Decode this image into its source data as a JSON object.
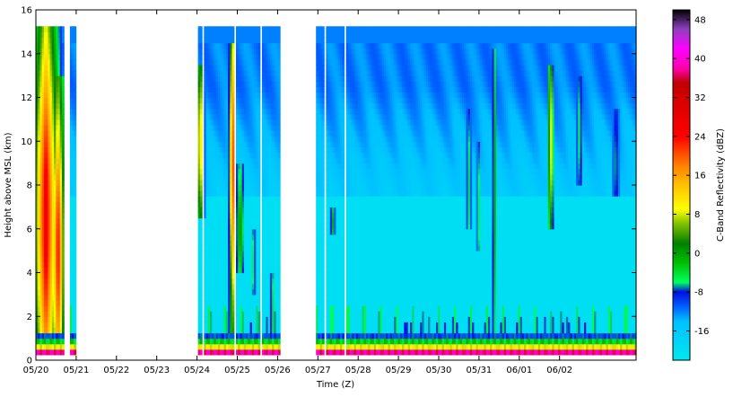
{
  "chart_data": {
    "type": "heatmap",
    "title": "",
    "xlabel": "Time (Z)",
    "ylabel": "Height above MSL (km)",
    "colorbar_label": "C-Band Reflectivity (dBZ)",
    "xlim": [
      0,
      14.9
    ],
    "ylim": [
      0,
      16
    ],
    "x_ticks": [
      {
        "pos": 0,
        "label": "05/20"
      },
      {
        "pos": 1,
        "label": "05/21"
      },
      {
        "pos": 2,
        "label": "05/22"
      },
      {
        "pos": 3,
        "label": "05/23"
      },
      {
        "pos": 4,
        "label": "05/24"
      },
      {
        "pos": 5,
        "label": "05/25"
      },
      {
        "pos": 6,
        "label": "05/26"
      },
      {
        "pos": 7,
        "label": "05/27"
      },
      {
        "pos": 8,
        "label": "05/28"
      },
      {
        "pos": 9,
        "label": "05/29"
      },
      {
        "pos": 10,
        "label": "05/30"
      },
      {
        "pos": 11,
        "label": "05/31"
      },
      {
        "pos": 12,
        "label": "06/01"
      },
      {
        "pos": 13,
        "label": "06/02"
      }
    ],
    "y_ticks": [
      0,
      2,
      4,
      6,
      8,
      10,
      12,
      14,
      16
    ],
    "colorbar": {
      "range": [
        -22,
        50
      ],
      "ticks": [
        -16,
        -8,
        0,
        8,
        16,
        24,
        32,
        40,
        48
      ],
      "stops": [
        {
          "v": -22,
          "color": "#00e8f0"
        },
        {
          "v": -14,
          "color": "#00c0ff"
        },
        {
          "v": -11,
          "color": "#0060ff"
        },
        {
          "v": -8,
          "color": "#0010e0"
        },
        {
          "v": -6,
          "color": "#00ff60"
        },
        {
          "v": -2,
          "color": "#00c000"
        },
        {
          "v": 2,
          "color": "#008000"
        },
        {
          "v": 6,
          "color": "#80c000"
        },
        {
          "v": 9,
          "color": "#ffff00"
        },
        {
          "v": 14,
          "color": "#ffc000"
        },
        {
          "v": 18,
          "color": "#ff8000"
        },
        {
          "v": 24,
          "color": "#ff0000"
        },
        {
          "v": 30,
          "color": "#e00000"
        },
        {
          "v": 35,
          "color": "#c00000"
        },
        {
          "v": 38,
          "color": "#ff00b0"
        },
        {
          "v": 42,
          "color": "#ff00ff"
        },
        {
          "v": 46,
          "color": "#9040c0"
        },
        {
          "v": 50,
          "color": "#000000"
        }
      ]
    },
    "data_segments": [
      {
        "start": 0,
        "end": 0.72
      },
      {
        "start": 0.82,
        "end": 0.98
      },
      {
        "start": 4.0,
        "end": 6.05
      },
      {
        "start": 6.95,
        "end": 14.9
      }
    ],
    "data_gaps": [
      {
        "start": 4.12,
        "end": 4.15
      },
      {
        "start": 4.26,
        "end": 4.28
      },
      {
        "start": 4.36,
        "end": 4.38
      },
      {
        "start": 4.47,
        "end": 4.49
      },
      {
        "start": 4.94,
        "end": 4.98
      },
      {
        "start": 5.3,
        "end": 5.32
      },
      {
        "start": 5.56,
        "end": 5.59
      },
      {
        "start": 5.8,
        "end": 5.82
      },
      {
        "start": 7.17,
        "end": 7.19
      },
      {
        "start": 7.66,
        "end": 7.68
      }
    ],
    "surface_bands": [
      {
        "y0": 0.3,
        "y1": 0.58,
        "value": 38
      },
      {
        "y0": 0.58,
        "y1": 0.82,
        "value": 9
      },
      {
        "y0": 0.82,
        "y1": 1.1,
        "value": -3
      },
      {
        "y0": 1.1,
        "y1": 1.32,
        "value": -9
      }
    ],
    "echo_top_km": 15.3,
    "storms": [
      {
        "x": 0.25,
        "halfwidth": 0.42,
        "y0": 0.3,
        "y1": 15.3,
        "peak": 28,
        "peak_y": 6.5,
        "spread_y": 6.5
      },
      {
        "x": 0.55,
        "halfwidth": 0.22,
        "y0": 0.3,
        "y1": 13,
        "peak": 26,
        "peak_y": 5,
        "spread_y": 5
      },
      {
        "x": 4.08,
        "halfwidth": 0.12,
        "y0": 6.5,
        "y1": 13.5,
        "peak": 14,
        "peak_y": 10,
        "spread_y": 3
      },
      {
        "x": 4.88,
        "halfwidth": 0.1,
        "y0": 0.5,
        "y1": 14.5,
        "peak": 24,
        "peak_y": 9,
        "spread_y": 5
      },
      {
        "x": 5.07,
        "halfwidth": 0.12,
        "y0": 4,
        "y1": 9,
        "peak": 2,
        "peak_y": 6,
        "spread_y": 2
      },
      {
        "x": 5.4,
        "halfwidth": 0.05,
        "y0": 3,
        "y1": 6,
        "peak": -3,
        "peak_y": 4.5,
        "spread_y": 1.5
      },
      {
        "x": 5.87,
        "halfwidth": 0.05,
        "y0": 0.5,
        "y1": 4,
        "peak": -1,
        "peak_y": 2,
        "spread_y": 2
      },
      {
        "x": 7.37,
        "halfwidth": 0.06,
        "y0": 5.7,
        "y1": 7,
        "peak": 0,
        "peak_y": 6.3,
        "spread_y": 0.8
      },
      {
        "x": 10.75,
        "halfwidth": 0.06,
        "y0": 6,
        "y1": 11.5,
        "peak": -4,
        "peak_y": 8,
        "spread_y": 2.5
      },
      {
        "x": 11.0,
        "halfwidth": 0.05,
        "y0": 5,
        "y1": 10,
        "peak": -5,
        "peak_y": 7,
        "spread_y": 2.5
      },
      {
        "x": 11.38,
        "halfwidth": 0.04,
        "y0": 0.5,
        "y1": 14.3,
        "peak": 8,
        "peak_y": 8,
        "spread_y": 6
      },
      {
        "x": 12.78,
        "halfwidth": 0.08,
        "y0": 6,
        "y1": 13.5,
        "peak": 12,
        "peak_y": 10,
        "spread_y": 3.5
      },
      {
        "x": 13.5,
        "halfwidth": 0.08,
        "y0": 8,
        "y1": 13,
        "peak": -4,
        "peak_y": 10.5,
        "spread_y": 2.5
      },
      {
        "x": 14.4,
        "halfwidth": 0.08,
        "y0": 7.5,
        "y1": 11.5,
        "peak": -5,
        "peak_y": 9,
        "spread_y": 2
      }
    ]
  }
}
